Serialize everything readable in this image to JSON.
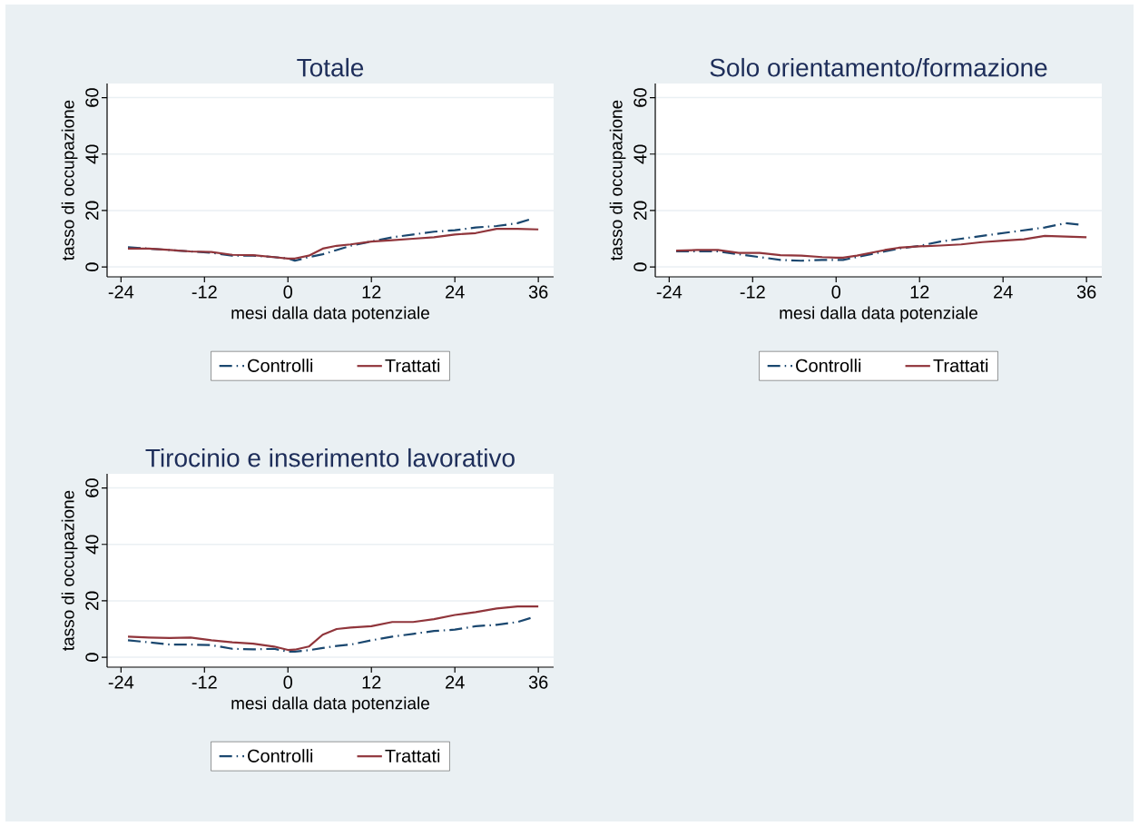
{
  "chart_data": [
    {
      "type": "line",
      "title": "Totale",
      "xlabel": "mesi dalla data potenziale",
      "ylabel": "tasso di occupazione",
      "xlim": [
        -26,
        38.2
      ],
      "ylim": [
        -3.5,
        65
      ],
      "xticks": [
        -24,
        -12,
        0,
        12,
        24,
        36
      ],
      "yticks": [
        0,
        20,
        40,
        60
      ],
      "grid": "y",
      "legend": "bottom",
      "series": [
        {
          "name": "Controlli",
          "color": "#1a476f",
          "line_style": "dashed",
          "x": [
            -23,
            -20,
            -17,
            -14,
            -11,
            -8,
            -5,
            -2,
            0,
            1,
            3,
            5,
            7,
            9,
            12,
            15,
            18,
            21,
            24,
            27,
            30,
            33,
            35
          ],
          "values": [
            7,
            6.5,
            6,
            5.5,
            5,
            4,
            4,
            3.5,
            3,
            2.2,
            3.5,
            4.5,
            6,
            7.5,
            9,
            10.5,
            11.5,
            12.5,
            13,
            14,
            14.5,
            15.5,
            17
          ]
        },
        {
          "name": "Trattati",
          "color": "#90353b",
          "line_style": "solid",
          "x": [
            -23,
            -20,
            -17,
            -14,
            -11,
            -8,
            -5,
            -2,
            0,
            1,
            3,
            5,
            7,
            9,
            12,
            15,
            18,
            21,
            24,
            27,
            30,
            33,
            36
          ],
          "values": [
            6.5,
            6.5,
            6,
            5.5,
            5.3,
            4.3,
            4.2,
            3.5,
            3,
            3,
            4,
            6.5,
            7.5,
            8,
            9,
            9.5,
            10,
            10.5,
            11.5,
            12,
            13.5,
            13.5,
            13.3
          ]
        }
      ]
    },
    {
      "type": "line",
      "title": "Solo orientamento/formazione",
      "xlabel": "mesi dalla data potenziale",
      "ylabel": "tasso di occupazione",
      "xlim": [
        -26,
        38.2
      ],
      "ylim": [
        -3.5,
        65
      ],
      "xticks": [
        -24,
        -12,
        0,
        12,
        24,
        36
      ],
      "yticks": [
        0,
        20,
        40,
        60
      ],
      "grid": "y",
      "legend": "bottom",
      "series": [
        {
          "name": "Controlli",
          "color": "#1a476f",
          "line_style": "dashed",
          "x": [
            -23,
            -20,
            -17,
            -14,
            -11,
            -8,
            -5,
            -2,
            0,
            1,
            3,
            5,
            7,
            9,
            12,
            15,
            18,
            21,
            24,
            27,
            30,
            33,
            35
          ],
          "values": [
            5.5,
            5.5,
            5.5,
            4.5,
            3.5,
            2.5,
            2.2,
            2.5,
            2.5,
            2.5,
            3.5,
            4.5,
            5.5,
            6.5,
            7.5,
            9,
            10,
            11,
            12,
            13,
            14,
            15.5,
            15
          ]
        },
        {
          "name": "Trattati",
          "color": "#90353b",
          "line_style": "solid",
          "x": [
            -23,
            -20,
            -17,
            -14,
            -11,
            -8,
            -5,
            -2,
            0,
            1,
            3,
            5,
            7,
            9,
            12,
            15,
            18,
            21,
            24,
            27,
            30,
            33,
            36
          ],
          "values": [
            5.8,
            6,
            6,
            5,
            5,
            4.2,
            4,
            3.5,
            3.3,
            3.3,
            4,
            5,
            6,
            6.8,
            7.3,
            7.6,
            8,
            8.8,
            9.3,
            9.8,
            11,
            10.8,
            10.5
          ]
        }
      ]
    },
    {
      "type": "line",
      "title": "Tirocinio e inserimento lavorativo",
      "xlabel": "mesi dalla data potenziale",
      "ylabel": "tasso di occupazione",
      "xlim": [
        -26,
        38.2
      ],
      "ylim": [
        -3.5,
        65
      ],
      "xticks": [
        -24,
        -12,
        0,
        12,
        24,
        36
      ],
      "yticks": [
        0,
        20,
        40,
        60
      ],
      "grid": "y",
      "legend": "bottom",
      "series": [
        {
          "name": "Controlli",
          "color": "#1a476f",
          "line_style": "dashed",
          "x": [
            -23,
            -20,
            -17,
            -14,
            -11,
            -8,
            -5,
            -2,
            0,
            1,
            3,
            5,
            7,
            9,
            12,
            15,
            18,
            21,
            24,
            27,
            30,
            33,
            35
          ],
          "values": [
            6,
            5.3,
            4.5,
            4.5,
            4.3,
            3,
            2.8,
            3,
            2,
            2,
            2.5,
            3.3,
            4,
            4.5,
            6,
            7.3,
            8.3,
            9.3,
            9.8,
            11,
            11.5,
            12.5,
            14
          ]
        },
        {
          "name": "Trattati",
          "color": "#90353b",
          "line_style": "solid",
          "x": [
            -23,
            -20,
            -17,
            -14,
            -11,
            -8,
            -5,
            -2,
            0,
            1,
            3,
            5,
            7,
            9,
            12,
            15,
            18,
            21,
            24,
            27,
            30,
            33,
            36
          ],
          "values": [
            7.3,
            7,
            6.8,
            7,
            6,
            5.3,
            4.8,
            3.8,
            2.6,
            2.7,
            3.8,
            8,
            10,
            10.5,
            11,
            12.5,
            12.5,
            13.5,
            15,
            16,
            17.3,
            18,
            18
          ]
        }
      ]
    }
  ]
}
